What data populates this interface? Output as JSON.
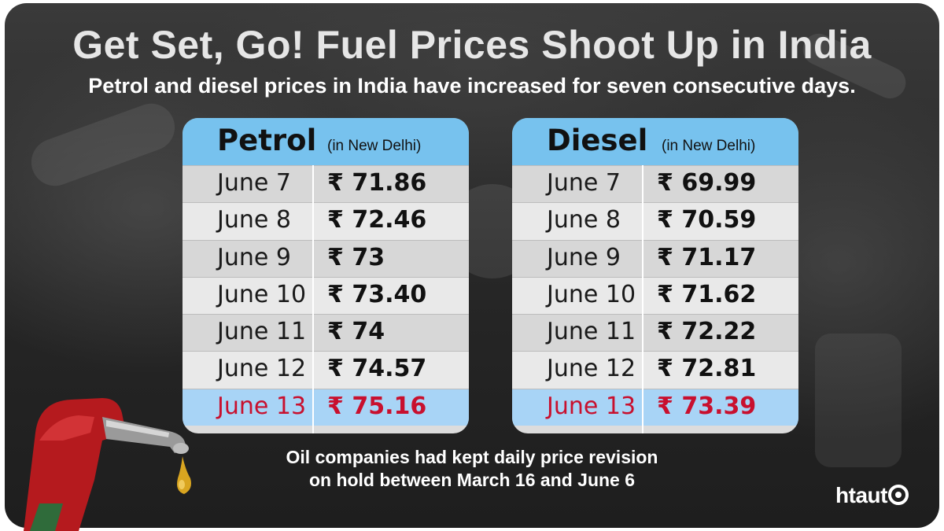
{
  "header": {
    "title": "Get Set, Go! Fuel Prices Shoot Up in India",
    "subtitle": "Petrol and diesel prices in India have increased for seven consecutive days."
  },
  "tables": [
    {
      "fuel": "Petrol",
      "location": "(in New Delhi)",
      "rows": [
        {
          "date": "June 7",
          "price": "₹ 71.86"
        },
        {
          "date": "June 8",
          "price": "₹ 72.46"
        },
        {
          "date": "June 9",
          "price": "₹ 73"
        },
        {
          "date": "June 10",
          "price": "₹ 73.40"
        },
        {
          "date": "June 11",
          "price": "₹ 74"
        },
        {
          "date": "June 12",
          "price": "₹ 74.57"
        },
        {
          "date": "June 13",
          "price": "₹ 75.16"
        }
      ]
    },
    {
      "fuel": "Diesel",
      "location": "(in New Delhi)",
      "rows": [
        {
          "date": "June 7",
          "price": "₹ 69.99"
        },
        {
          "date": "June 8",
          "price": "₹ 70.59"
        },
        {
          "date": "June 9",
          "price": "₹ 71.17"
        },
        {
          "date": "June 10",
          "price": "₹ 71.62"
        },
        {
          "date": "June 11",
          "price": "₹ 72.22"
        },
        {
          "date": "June 12",
          "price": "₹ 72.81"
        },
        {
          "date": "June 13",
          "price": "₹ 73.39"
        }
      ]
    }
  ],
  "footnote": {
    "line1": "Oil companies had kept daily price revision",
    "line2": "on hold between March 16 and June 6"
  },
  "logo": {
    "text_ht": "ht",
    "text_auto": "aut"
  },
  "colors": {
    "header_blue": "#77c2ee",
    "highlight_row": "#a8d4f6",
    "highlight_text": "#c8102e",
    "background": "#262626"
  },
  "icons": [
    "fuel-nozzle-icon",
    "wheel-icon"
  ]
}
